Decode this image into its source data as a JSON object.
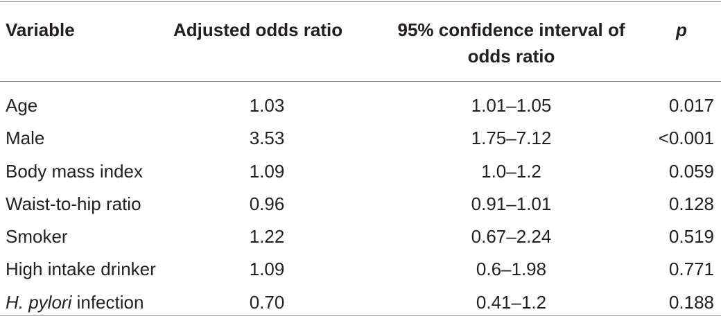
{
  "table": {
    "headers": {
      "variable": "Variable",
      "adjusted_odds_ratio": "Adjusted odds ratio",
      "ci": "95% confidence interval of odds ratio",
      "p": "p"
    },
    "rows": [
      {
        "variable": "Age",
        "variable_italic": "",
        "variable_rest": "",
        "aor": "1.03",
        "ci": "1.01–1.05",
        "p": "0.017"
      },
      {
        "variable": "Male",
        "variable_italic": "",
        "variable_rest": "",
        "aor": "3.53",
        "ci": "1.75–7.12",
        "p": "<0.001"
      },
      {
        "variable": "Body mass index",
        "variable_italic": "",
        "variable_rest": "",
        "aor": "1.09",
        "ci": "1.0–1.2",
        "p": "0.059"
      },
      {
        "variable": "Waist-to-hip ratio",
        "variable_italic": "",
        "variable_rest": "",
        "aor": "0.96",
        "ci": "0.91–1.01",
        "p": "0.128"
      },
      {
        "variable": "Smoker",
        "variable_italic": "",
        "variable_rest": "",
        "aor": "1.22",
        "ci": "0.67–2.24",
        "p": "0.519"
      },
      {
        "variable": "High intake drinker",
        "variable_italic": "",
        "variable_rest": "",
        "aor": "1.09",
        "ci": "0.6–1.98",
        "p": "0.771"
      },
      {
        "variable": "",
        "variable_italic": "H. pylori",
        "variable_rest": " infection",
        "aor": "0.70",
        "ci": "0.41–1.2",
        "p": "0.188"
      }
    ]
  }
}
